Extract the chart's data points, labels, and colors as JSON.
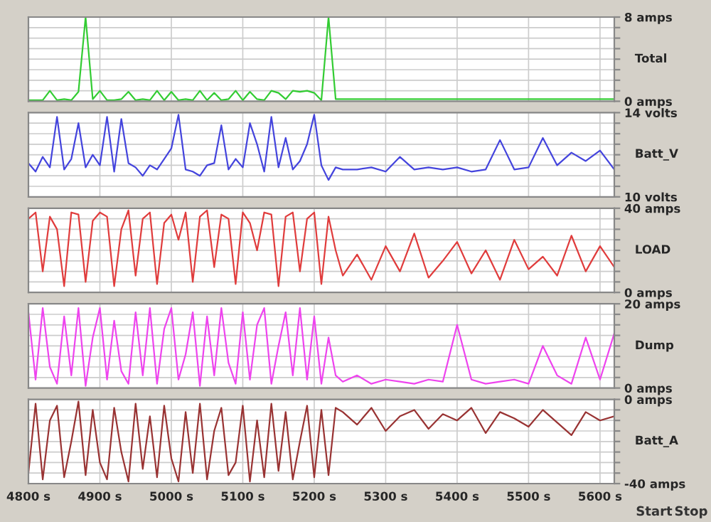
{
  "chart_data": [
    {
      "type": "line",
      "ylabel": "Total",
      "grid": true,
      "tick_labels": "y",
      "line_style": "solid",
      "x": [
        4800,
        4810,
        4820,
        4830,
        4840,
        4850,
        4860,
        4870,
        4880,
        4890,
        4900,
        4910,
        4920,
        4930,
        4940,
        4950,
        4960,
        4970,
        4980,
        4990,
        5000,
        5010,
        5020,
        5030,
        5040,
        5050,
        5060,
        5070,
        5080,
        5090,
        5100,
        5110,
        5120,
        5130,
        5140,
        5150,
        5160,
        5170,
        5180,
        5190,
        5200,
        5210,
        5220,
        5230,
        5240,
        5260,
        5280,
        5300,
        5320,
        5340,
        5360,
        5380,
        5400,
        5420,
        5440,
        5460,
        5480,
        5500,
        5520,
        5540,
        5560,
        5580,
        5600,
        5620
      ],
      "xlim": [
        4800,
        5620
      ],
      "xticks": [
        4800,
        4900,
        5000,
        5100,
        5200,
        5300,
        5400,
        5500,
        5600
      ],
      "ylim": [
        0,
        8
      ],
      "yticks": [
        {
          "value": 0,
          "label": "0 amps"
        },
        {
          "value": 1,
          "label": null
        },
        {
          "value": 2,
          "label": null
        },
        {
          "value": 3,
          "label": null
        },
        {
          "value": 4,
          "label": null
        },
        {
          "value": 5,
          "label": null
        },
        {
          "value": 6,
          "label": null
        },
        {
          "value": 7,
          "label": null
        },
        {
          "value": 8,
          "label": "8 amps"
        }
      ],
      "series": [
        {
          "color": "#33cc33",
          "values": [
            0.1,
            0.1,
            0.1,
            1,
            0.1,
            0.2,
            0.1,
            0.9,
            8,
            0.2,
            1,
            0.1,
            0.1,
            0.2,
            0.9,
            0.1,
            0.2,
            0.1,
            1,
            0.1,
            0.9,
            0.1,
            0.2,
            0.1,
            1,
            0.1,
            0.8,
            0.1,
            0.2,
            1,
            0.1,
            0.9,
            0.2,
            0.1,
            1,
            0.8,
            0.2,
            1,
            0.9,
            1,
            0.8,
            0.1,
            8,
            0.2,
            0.2,
            0.2,
            0.2,
            0.2,
            0.2,
            0.2,
            0.2,
            0.2,
            0.2,
            0.2,
            0.2,
            0.2,
            0.2,
            0.2,
            0.2,
            0.2,
            0.2,
            0.2,
            0.2,
            0.2
          ]
        }
      ]
    },
    {
      "type": "line",
      "ylabel": "Batt_V",
      "grid": true,
      "tick_labels": "y",
      "line_style": "solid",
      "x": [
        4800,
        4810,
        4820,
        4830,
        4840,
        4850,
        4860,
        4870,
        4880,
        4890,
        4900,
        4910,
        4920,
        4930,
        4940,
        4950,
        4960,
        4970,
        4980,
        4990,
        5000,
        5010,
        5020,
        5030,
        5040,
        5050,
        5060,
        5070,
        5080,
        5090,
        5100,
        5110,
        5120,
        5130,
        5140,
        5150,
        5160,
        5170,
        5180,
        5190,
        5200,
        5210,
        5220,
        5230,
        5240,
        5260,
        5280,
        5300,
        5320,
        5340,
        5360,
        5380,
        5400,
        5420,
        5440,
        5460,
        5480,
        5500,
        5520,
        5540,
        5560,
        5580,
        5600,
        5620
      ],
      "xlim": [
        4800,
        5620
      ],
      "xticks": [
        4800,
        4900,
        5000,
        5100,
        5200,
        5300,
        5400,
        5500,
        5600
      ],
      "ylim": [
        10,
        14
      ],
      "yticks": [
        {
          "value": 10,
          "label": "10 volts"
        },
        {
          "value": 10.5,
          "label": null
        },
        {
          "value": 11,
          "label": null
        },
        {
          "value": 11.5,
          "label": null
        },
        {
          "value": 12,
          "label": null
        },
        {
          "value": 12.5,
          "label": null
        },
        {
          "value": 13,
          "label": null
        },
        {
          "value": 13.5,
          "label": null
        },
        {
          "value": 14,
          "label": "14 volts"
        }
      ],
      "series": [
        {
          "color": "#4444dd",
          "values": [
            11.6,
            11.2,
            11.9,
            11.4,
            13.8,
            11.3,
            11.8,
            13.5,
            11.4,
            12,
            11.5,
            13.8,
            11.2,
            13.7,
            11.6,
            11.4,
            11,
            11.5,
            11.3,
            11.8,
            12.3,
            13.9,
            11.3,
            11.2,
            11,
            11.5,
            11.6,
            13.4,
            11.3,
            11.8,
            11.4,
            13.5,
            12.5,
            11.2,
            13.8,
            11.4,
            12.8,
            11.3,
            11.7,
            12.5,
            13.9,
            11.5,
            10.8,
            11.4,
            11.3,
            11.3,
            11.4,
            11.2,
            11.9,
            11.3,
            11.4,
            11.3,
            11.4,
            11.2,
            11.3,
            12.7,
            11.3,
            11.4,
            12.8,
            11.5,
            12.1,
            11.7,
            12.2,
            11.3
          ]
        }
      ]
    },
    {
      "type": "line",
      "ylabel": "LOAD",
      "grid": true,
      "tick_labels": "y",
      "line_style": "solid",
      "x": [
        4800,
        4810,
        4820,
        4830,
        4840,
        4850,
        4860,
        4870,
        4880,
        4890,
        4900,
        4910,
        4920,
        4930,
        4940,
        4950,
        4960,
        4970,
        4980,
        4990,
        5000,
        5010,
        5020,
        5030,
        5040,
        5050,
        5060,
        5070,
        5080,
        5090,
        5100,
        5110,
        5120,
        5130,
        5140,
        5150,
        5160,
        5170,
        5180,
        5190,
        5200,
        5210,
        5220,
        5230,
        5240,
        5260,
        5280,
        5300,
        5320,
        5340,
        5360,
        5380,
        5400,
        5420,
        5440,
        5460,
        5480,
        5500,
        5520,
        5540,
        5560,
        5580,
        5600,
        5620
      ],
      "xlim": [
        4800,
        5620
      ],
      "xticks": [
        4800,
        4900,
        5000,
        5100,
        5200,
        5300,
        5400,
        5500,
        5600
      ],
      "ylim": [
        0,
        40
      ],
      "yticks": [
        {
          "value": 0,
          "label": "0 amps"
        },
        {
          "value": 5,
          "label": null
        },
        {
          "value": 10,
          "label": null
        },
        {
          "value": 15,
          "label": null
        },
        {
          "value": 20,
          "label": null
        },
        {
          "value": 25,
          "label": null
        },
        {
          "value": 30,
          "label": null
        },
        {
          "value": 35,
          "label": null
        },
        {
          "value": 40,
          "label": "40 amps"
        }
      ],
      "series": [
        {
          "color": "#e03c3c",
          "values": [
            35,
            38,
            10,
            36,
            30,
            3,
            38,
            37,
            5,
            34,
            38,
            36,
            3,
            30,
            39,
            8,
            35,
            38,
            4,
            33,
            37,
            25,
            38,
            5,
            36,
            39,
            12,
            37,
            35,
            4,
            38,
            33,
            20,
            38,
            37,
            3,
            36,
            38,
            10,
            35,
            38,
            4,
            36,
            20,
            8,
            18,
            6,
            22,
            10,
            28,
            7,
            15,
            24,
            9,
            20,
            6,
            25,
            11,
            17,
            8,
            27,
            10,
            22,
            12
          ]
        }
      ]
    },
    {
      "type": "line",
      "ylabel": "Dump",
      "grid": true,
      "tick_labels": "y",
      "line_style": "solid",
      "x": [
        4800,
        4810,
        4820,
        4830,
        4840,
        4850,
        4860,
        4870,
        4880,
        4890,
        4900,
        4910,
        4920,
        4930,
        4940,
        4950,
        4960,
        4970,
        4980,
        4990,
        5000,
        5010,
        5020,
        5030,
        5040,
        5050,
        5060,
        5070,
        5080,
        5090,
        5100,
        5110,
        5120,
        5130,
        5140,
        5150,
        5160,
        5170,
        5180,
        5190,
        5200,
        5210,
        5220,
        5230,
        5240,
        5260,
        5280,
        5300,
        5320,
        5340,
        5360,
        5380,
        5400,
        5420,
        5440,
        5460,
        5480,
        5500,
        5520,
        5540,
        5560,
        5580,
        5600,
        5620
      ],
      "xlim": [
        4800,
        5620
      ],
      "xticks": [
        4800,
        4900,
        5000,
        5100,
        5200,
        5300,
        5400,
        5500,
        5600
      ],
      "ylim": [
        0,
        20
      ],
      "yticks": [
        {
          "value": 0,
          "label": "0 amps"
        },
        {
          "value": 2.5,
          "label": null
        },
        {
          "value": 5,
          "label": null
        },
        {
          "value": 7.5,
          "label": null
        },
        {
          "value": 10,
          "label": null
        },
        {
          "value": 12.5,
          "label": null
        },
        {
          "value": 15,
          "label": null
        },
        {
          "value": 17.5,
          "label": null
        },
        {
          "value": 20,
          "label": "20 amps"
        }
      ],
      "series": [
        {
          "color": "#ee44ee",
          "values": [
            18,
            2,
            19,
            5,
            1,
            17,
            3,
            19,
            0.5,
            12,
            19,
            2,
            16,
            4,
            1,
            18,
            3,
            19,
            1,
            14,
            19,
            2,
            8,
            18,
            0.5,
            17,
            3,
            19,
            6,
            1,
            18,
            2,
            15,
            19,
            1,
            10,
            18,
            3,
            19,
            2,
            17,
            1,
            12,
            3,
            1.5,
            3,
            1,
            2,
            1.5,
            1,
            2,
            1.5,
            15,
            2,
            1,
            1.5,
            2,
            1,
            10,
            3,
            1,
            12,
            2,
            13
          ]
        }
      ]
    },
    {
      "type": "line",
      "ylabel": "Batt_A",
      "grid": true,
      "line_style": "solid",
      "annotations": [
        "Start",
        "Stop"
      ],
      "x": [
        4800,
        4810,
        4820,
        4830,
        4840,
        4850,
        4860,
        4870,
        4880,
        4890,
        4900,
        4910,
        4920,
        4930,
        4940,
        4950,
        4960,
        4970,
        4980,
        4990,
        5000,
        5010,
        5020,
        5030,
        5040,
        5050,
        5060,
        5070,
        5080,
        5090,
        5100,
        5110,
        5120,
        5130,
        5140,
        5150,
        5160,
        5170,
        5180,
        5190,
        5200,
        5210,
        5220,
        5230,
        5240,
        5260,
        5280,
        5300,
        5320,
        5340,
        5360,
        5380,
        5400,
        5420,
        5440,
        5460,
        5480,
        5500,
        5520,
        5540,
        5560,
        5580,
        5600,
        5620
      ],
      "xlim": [
        4800,
        5620
      ],
      "xticks": [
        {
          "value": 4800,
          "label": "4800 s"
        },
        {
          "value": 4900,
          "label": "4900 s"
        },
        {
          "value": 5000,
          "label": "5000 s"
        },
        {
          "value": 5100,
          "label": "5100 s"
        },
        {
          "value": 5200,
          "label": "5200 s"
        },
        {
          "value": 5300,
          "label": "5300 s"
        },
        {
          "value": 5400,
          "label": "5400 s"
        },
        {
          "value": 5500,
          "label": "5500 s"
        },
        {
          "value": 5600,
          "label": "5600 s"
        }
      ],
      "ylim": [
        -40,
        0
      ],
      "yticks": [
        {
          "value": -40,
          "label": "-40 amps"
        },
        {
          "value": -35,
          "label": null
        },
        {
          "value": -30,
          "label": null
        },
        {
          "value": -25,
          "label": null
        },
        {
          "value": -20,
          "label": null
        },
        {
          "value": -15,
          "label": null
        },
        {
          "value": -10,
          "label": null
        },
        {
          "value": -5,
          "label": null
        },
        {
          "value": 0,
          "label": "0 amps"
        }
      ],
      "series": [
        {
          "color": "#993333",
          "values": [
            -35,
            -2,
            -38,
            -10,
            -3,
            -37,
            -20,
            -1,
            -36,
            -5,
            -30,
            -38,
            -4,
            -25,
            -39,
            -2,
            -33,
            -8,
            -37,
            -3,
            -28,
            -39,
            -6,
            -35,
            -2,
            -38,
            -15,
            -4,
            -36,
            -30,
            -3,
            -39,
            -10,
            -37,
            -2,
            -34,
            -6,
            -38,
            -20,
            -3,
            -37,
            -5,
            -36,
            -4,
            -6,
            -12,
            -4,
            -15,
            -8,
            -5,
            -14,
            -7,
            -10,
            -4,
            -16,
            -6,
            -9,
            -13,
            -5,
            -11,
            -17,
            -6,
            -10,
            -8
          ]
        }
      ]
    }
  ]
}
